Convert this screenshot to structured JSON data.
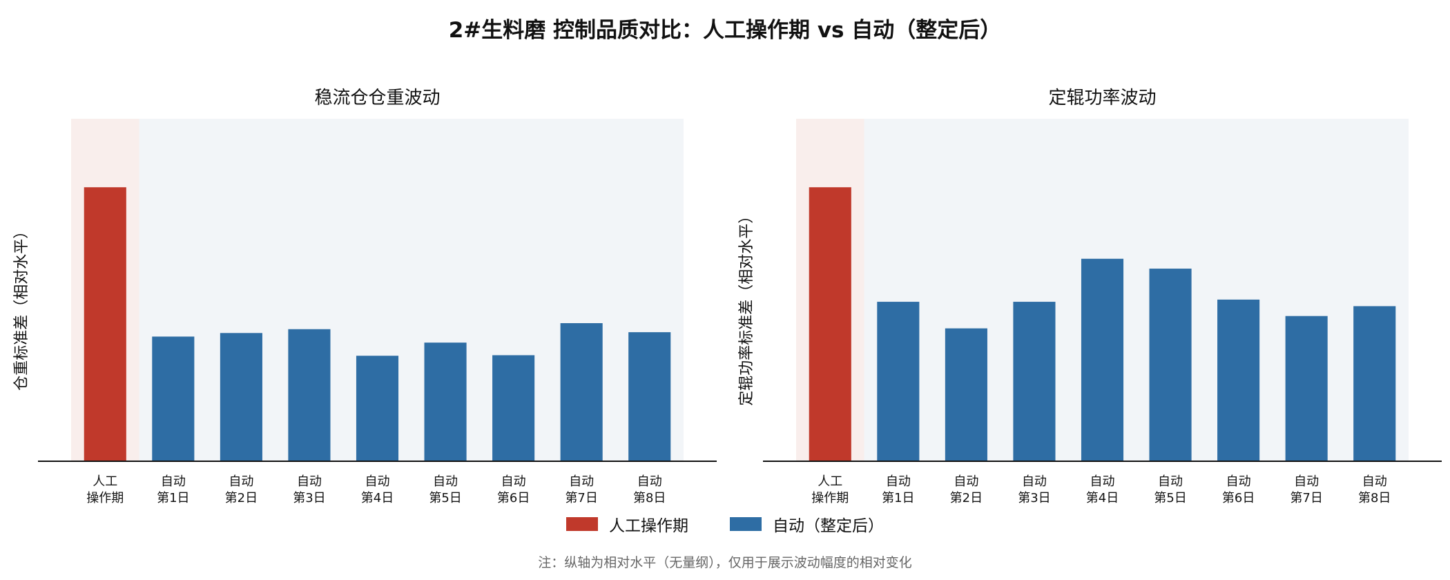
{
  "title": "2#生料磨 控制品质对比：人工操作期 vs 自动（整定后）",
  "colors": {
    "manual": "#c0392b",
    "auto": "#2e6da4",
    "manual_bg": "#f9eeec",
    "auto_bg": "#f2f5f8"
  },
  "legend": {
    "manual": "人工操作期",
    "auto": "自动（整定后）"
  },
  "footnote": "注：纵轴为相对水平（无量纲），仅用于展示波动幅度的相对变化",
  "chart_data": [
    {
      "type": "bar",
      "title": "稳流仓仓重波动",
      "ylabel": "仓重标准差（相对水平）",
      "xlabel": "",
      "categories": [
        [
          "人工",
          "操作期"
        ],
        [
          "自动",
          "第1日"
        ],
        [
          "自动",
          "第2日"
        ],
        [
          "自动",
          "第3日"
        ],
        [
          "自动",
          "第4日"
        ],
        [
          "自动",
          "第5日"
        ],
        [
          "自动",
          "第6日"
        ],
        [
          "自动",
          "第7日"
        ],
        [
          "自动",
          "第8日"
        ]
      ],
      "groups": [
        "manual",
        "auto",
        "auto",
        "auto",
        "auto",
        "auto",
        "auto",
        "auto",
        "auto"
      ],
      "values": [
        1.0,
        0.455,
        0.468,
        0.482,
        0.385,
        0.433,
        0.387,
        0.504,
        0.471
      ],
      "ylim": [
        0,
        1.25
      ],
      "grid": false
    },
    {
      "type": "bar",
      "title": "定辊功率波动",
      "ylabel": "定辊功率标准差（相对水平）",
      "xlabel": "",
      "categories": [
        [
          "人工",
          "操作期"
        ],
        [
          "自动",
          "第1日"
        ],
        [
          "自动",
          "第2日"
        ],
        [
          "自动",
          "第3日"
        ],
        [
          "自动",
          "第4日"
        ],
        [
          "自动",
          "第5日"
        ],
        [
          "自动",
          "第6日"
        ],
        [
          "自动",
          "第7日"
        ],
        [
          "自动",
          "第8日"
        ]
      ],
      "groups": [
        "manual",
        "auto",
        "auto",
        "auto",
        "auto",
        "auto",
        "auto",
        "auto",
        "auto"
      ],
      "values": [
        1.0,
        0.582,
        0.485,
        0.582,
        0.739,
        0.703,
        0.59,
        0.53,
        0.566
      ],
      "ylim": [
        0,
        1.25
      ],
      "grid": false
    }
  ]
}
